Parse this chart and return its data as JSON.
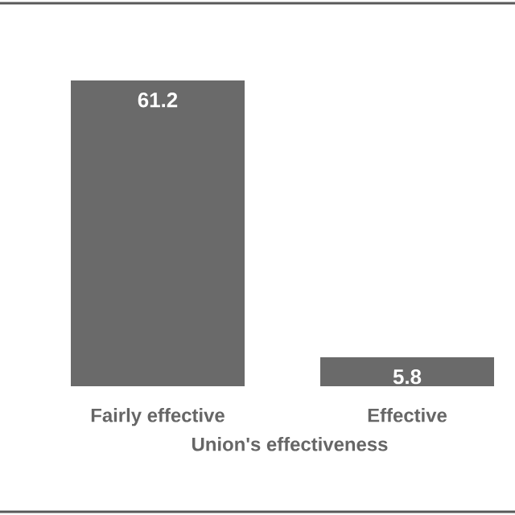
{
  "chart_data": {
    "type": "bar",
    "xlabel": "Union's effectiveness",
    "categories": [
      "Fairly effective",
      "Effective"
    ],
    "values": [
      61.2,
      5.8
    ],
    "color": "#6a6a6a",
    "data_labels": true
  }
}
